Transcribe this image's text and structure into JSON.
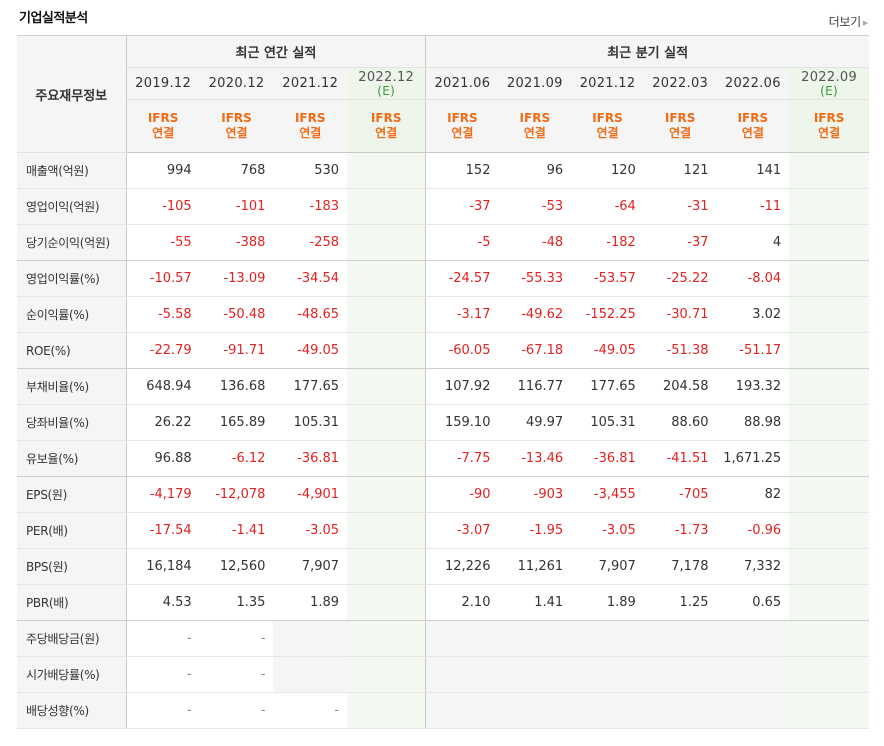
{
  "header": {
    "title": "기업실적분석",
    "more_label": "더보기"
  },
  "table": {
    "label_header": "주요재무정보",
    "groups": {
      "annual": "최근 연간 실적",
      "quarterly": "최근 분기 실적"
    },
    "periods": [
      "2019.12",
      "2020.12",
      "2021.12",
      "2022.12",
      "2021.06",
      "2021.09",
      "2021.12",
      "2022.03",
      "2022.06",
      "2022.09"
    ],
    "estimate_mark": "(E)",
    "ifrs": {
      "line1": "IFRS",
      "line2": "연결"
    },
    "rows": [
      {
        "label": "매출액(억원)",
        "values": [
          "994",
          "768",
          "530",
          "",
          "152",
          "96",
          "120",
          "121",
          "141",
          ""
        ]
      },
      {
        "label": "영업이익(억원)",
        "values": [
          "-105",
          "-101",
          "-183",
          "",
          "-37",
          "-53",
          "-64",
          "-31",
          "-11",
          ""
        ]
      },
      {
        "label": "당기순이익(억원)",
        "values": [
          "-55",
          "-388",
          "-258",
          "",
          "-5",
          "-48",
          "-182",
          "-37",
          "4",
          ""
        ]
      },
      {
        "label": "영업이익률(%)",
        "values": [
          "-10.57",
          "-13.09",
          "-34.54",
          "",
          "-24.57",
          "-55.33",
          "-53.57",
          "-25.22",
          "-8.04",
          ""
        ]
      },
      {
        "label": "순이익률(%)",
        "values": [
          "-5.58",
          "-50.48",
          "-48.65",
          "",
          "-3.17",
          "-49.62",
          "-152.25",
          "-30.71",
          "3.02",
          ""
        ]
      },
      {
        "label": "ROE(%)",
        "values": [
          "-22.79",
          "-91.71",
          "-49.05",
          "",
          "-60.05",
          "-67.18",
          "-49.05",
          "-51.38",
          "-51.17",
          ""
        ]
      },
      {
        "label": "부채비율(%)",
        "values": [
          "648.94",
          "136.68",
          "177.65",
          "",
          "107.92",
          "116.77",
          "177.65",
          "204.58",
          "193.32",
          ""
        ]
      },
      {
        "label": "당좌비율(%)",
        "values": [
          "26.22",
          "165.89",
          "105.31",
          "",
          "159.10",
          "49.97",
          "105.31",
          "88.60",
          "88.98",
          ""
        ]
      },
      {
        "label": "유보율(%)",
        "values": [
          "96.88",
          "-6.12",
          "-36.81",
          "",
          "-7.75",
          "-13.46",
          "-36.81",
          "-41.51",
          "1,671.25",
          ""
        ]
      },
      {
        "label": "EPS(원)",
        "values": [
          "-4,179",
          "-12,078",
          "-4,901",
          "",
          "-90",
          "-903",
          "-3,455",
          "-705",
          "82",
          ""
        ]
      },
      {
        "label": "PER(배)",
        "values": [
          "-17.54",
          "-1.41",
          "-3.05",
          "",
          "-3.07",
          "-1.95",
          "-3.05",
          "-1.73",
          "-0.96",
          ""
        ]
      },
      {
        "label": "BPS(원)",
        "values": [
          "16,184",
          "12,560",
          "7,907",
          "",
          "12,226",
          "11,261",
          "7,907",
          "7,178",
          "7,332",
          ""
        ]
      },
      {
        "label": "PBR(배)",
        "values": [
          "4.53",
          "1.35",
          "1.89",
          "",
          "2.10",
          "1.41",
          "1.89",
          "1.25",
          "0.65",
          ""
        ]
      },
      {
        "label": "주당배당금(원)",
        "values": [
          "-",
          "-",
          "",
          "",
          "",
          "",
          "",
          "",
          "",
          ""
        ]
      },
      {
        "label": "시가배당률(%)",
        "values": [
          "-",
          "-",
          "",
          "",
          "",
          "",
          "",
          "",
          "",
          ""
        ]
      },
      {
        "label": "배당성향(%)",
        "values": [
          "-",
          "-",
          "-",
          "",
          "",
          "",
          "",
          "",
          "",
          ""
        ]
      }
    ]
  },
  "colors": {
    "negative": "#e22222",
    "ifrs": "#f26b17",
    "estimate": "#3a9a3a"
  }
}
